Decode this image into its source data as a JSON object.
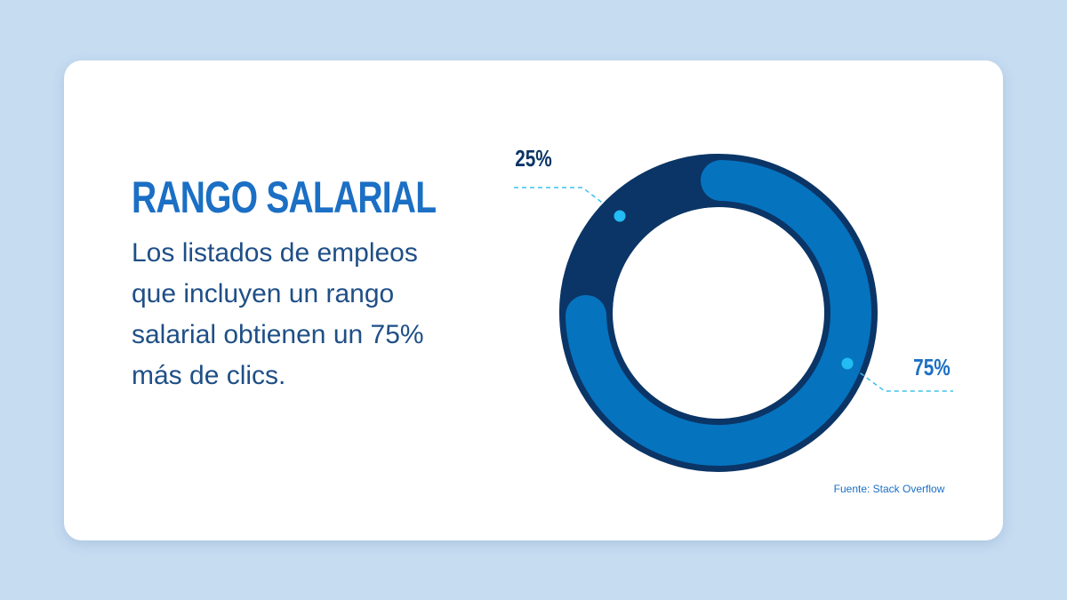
{
  "chart_data": {
    "type": "donut",
    "title": "RANGO SALARIAL",
    "subtitle": "Los listados de empleos que incluyen un rango salarial obtienen un 75% más de clics.",
    "values": [
      25,
      75
    ],
    "value_labels": [
      "25%",
      "75%"
    ],
    "colors": [
      "#0b3566",
      "#0673bf"
    ],
    "source": "Fuente: Stack Overflow"
  }
}
